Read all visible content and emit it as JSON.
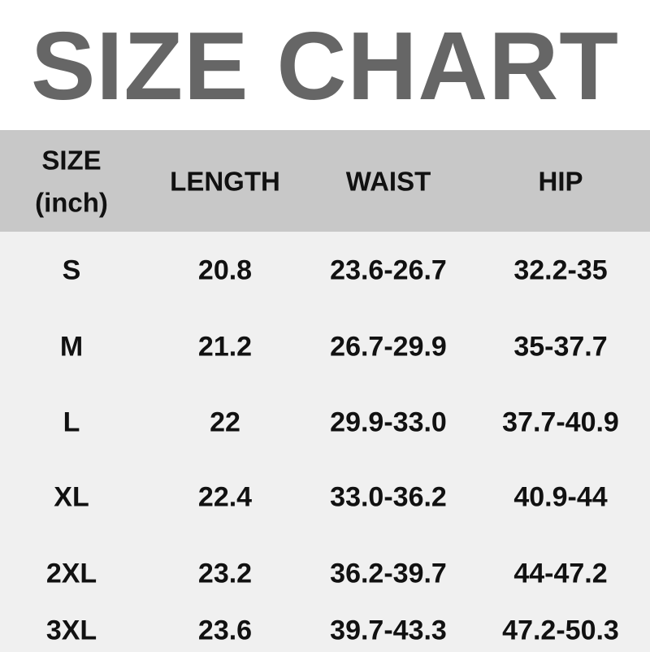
{
  "title": "SIZE CHART",
  "colors": {
    "title": "#666666",
    "header_bg": "#c8c8c8",
    "body_bg": "#f0f0f0"
  },
  "table": {
    "headers": [
      "SIZE",
      "(inch)",
      "LENGTH",
      "WAIST",
      "HIP"
    ],
    "rows": [
      [
        "S",
        "20.8",
        "23.6-26.7",
        "32.2-35"
      ],
      [
        "M",
        "21.2",
        "26.7-29.9",
        "35-37.7"
      ],
      [
        "L",
        "22",
        "29.9-33.0",
        "37.7-40.9"
      ],
      [
        "XL",
        "22.4",
        "33.0-36.2",
        "40.9-44"
      ],
      [
        "2XL",
        "23.2",
        "36.2-39.7",
        "44-47.2"
      ],
      [
        "3XL",
        "23.6",
        "39.7-43.3",
        "47.2-50.3"
      ]
    ]
  }
}
